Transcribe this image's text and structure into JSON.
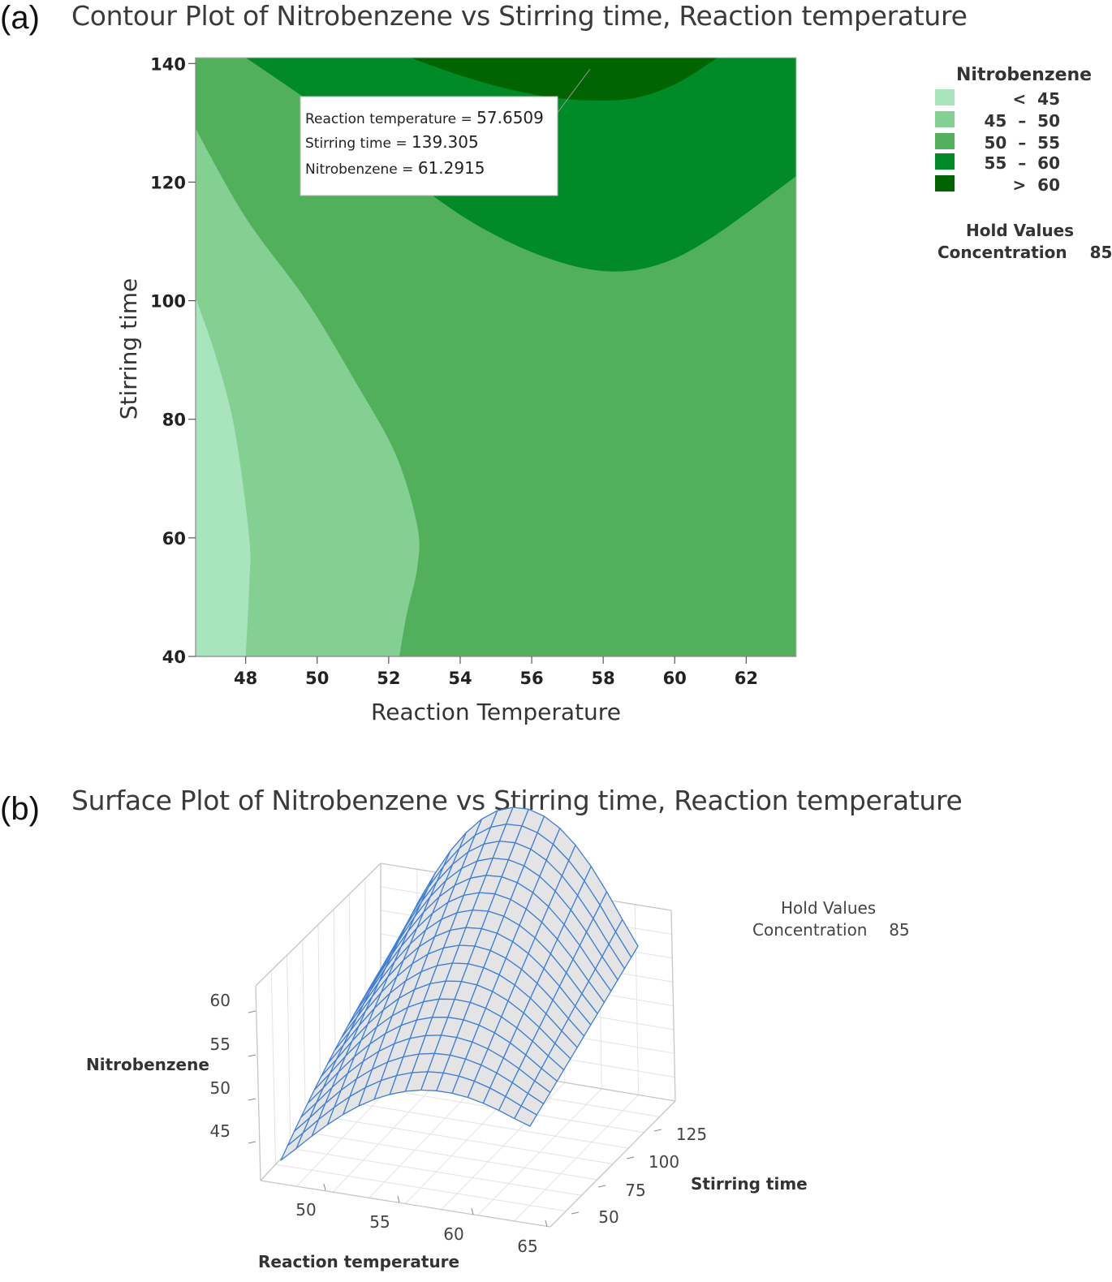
{
  "panel_a": {
    "label": "(a)",
    "title": "Contour Plot of Nitrobenzene vs Stirring time, Reaction temperature",
    "legend": {
      "title": "Nitrobenzene",
      "items": [
        {
          "text": "<  45",
          "color": "#a8e4bc"
        },
        {
          "text": "45  –  50",
          "color": "#84cf92"
        },
        {
          "text": "50  –  55",
          "color": "#52b05d"
        },
        {
          "text": "55  –  60",
          "color": "#018a28"
        },
        {
          "text": ">  60",
          "color": "#006400"
        }
      ]
    },
    "hold_values": {
      "title": "Hold Values",
      "name": "Concentration",
      "value": "85"
    },
    "tooltip": {
      "rows": [
        {
          "label": "Reaction temperature",
          "value": "57.6509"
        },
        {
          "label": "Stirring time",
          "value": "139.305"
        },
        {
          "label": "Nitrobenzene",
          "value": "61.2915"
        }
      ]
    }
  },
  "panel_b": {
    "label": "(b)",
    "title": "Surface Plot of Nitrobenzene vs Stirring time, Reaction temperature",
    "hold_values": {
      "title": "Hold Values",
      "name": "Concentration",
      "value": "85"
    }
  },
  "chart_data": [
    {
      "type": "contour",
      "title": "Contour Plot of Nitrobenzene vs Stirring time, Reaction temperature",
      "xlabel": "Reaction Temperature",
      "ylabel": "Stirring time",
      "xlim": [
        46.6,
        63.4
      ],
      "ylim": [
        40,
        141
      ],
      "xticks": [
        48,
        50,
        52,
        54,
        56,
        58,
        60,
        62
      ],
      "yticks": [
        40,
        60,
        80,
        100,
        120,
        140
      ],
      "levels": [
        45,
        50,
        55,
        60
      ],
      "regions": [
        {
          "range": "< 45",
          "color": "#a8e4bc",
          "boundary": [
            [
              46.6,
              100.5
            ],
            [
              47.2,
              90
            ],
            [
              47.7,
              78
            ],
            [
              48.1,
              60
            ],
            [
              48.1,
              52
            ],
            [
              48.0,
              40
            ]
          ]
        },
        {
          "range": "45 – 50",
          "color": "#84cf92",
          "boundary": [
            [
              46.6,
              129
            ],
            [
              48.0,
              114
            ],
            [
              49.7,
              100
            ],
            [
              51.1,
              86
            ],
            [
              52.2,
              74
            ],
            [
              52.8,
              62
            ],
            [
              52.8,
              55
            ],
            [
              52.5,
              47
            ],
            [
              52.3,
              40
            ]
          ]
        },
        {
          "range": "55 – 60",
          "color": "#018a28",
          "boundary": [
            [
              48.0,
              141
            ],
            [
              50.4,
              131
            ],
            [
              52.5,
              121
            ],
            [
              54.4,
              113
            ],
            [
              56.3,
              107.5
            ],
            [
              58.0,
              105
            ],
            [
              59.5,
              106
            ],
            [
              61.0,
              110.5
            ],
            [
              63.4,
              121
            ]
          ]
        },
        {
          "range": "> 60",
          "color": "#006400",
          "boundary": [
            [
              52.6,
              141
            ],
            [
              54.0,
              138
            ],
            [
              55.5,
              135.5
            ],
            [
              57.0,
              134
            ],
            [
              58.7,
              134
            ],
            [
              60.0,
              136.5
            ],
            [
              61.2,
              141
            ]
          ]
        }
      ],
      "tooltip": {
        "x": 57.6509,
        "y": 139.305,
        "z": 61.2915
      }
    },
    {
      "type": "surface",
      "title": "Surface Plot of Nitrobenzene vs Stirring time, Reaction temperature",
      "xlabel": "Reaction temperature",
      "ylabel": "Stirring time",
      "zlabel": "Nitrobenzene",
      "xlim": [
        46.6,
        63.4
      ],
      "ylim": [
        40,
        140
      ],
      "zlim": [
        43,
        62
      ],
      "xticks": [
        50,
        55,
        60,
        65
      ],
      "yticks": [
        50,
        75,
        100,
        125
      ],
      "zticks": [
        45,
        50,
        55,
        60
      ],
      "corner_values": {
        "x_low_y_low": 43.5,
        "x_high_y_low": 51.5,
        "x_low_y_high": 53,
        "x_high_y_high": 58.5
      },
      "peak": {
        "x": 57.6,
        "y": 140,
        "z": 61.3
      }
    }
  ]
}
